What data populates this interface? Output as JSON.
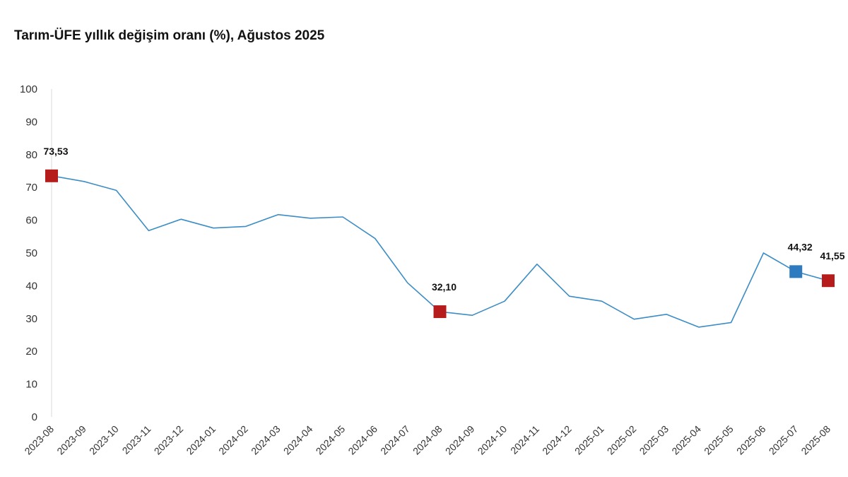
{
  "chart_data": {
    "type": "line",
    "title": "Tarım-ÜFE yıllık değişim oranı (%), Ağustos 2025",
    "xlabel": "",
    "ylabel": "",
    "ylim": [
      0,
      100
    ],
    "yticks": [
      0,
      10,
      20,
      30,
      40,
      50,
      60,
      70,
      80,
      90,
      100
    ],
    "grid": false,
    "legend": "none",
    "categories": [
      "2023-08",
      "2023-09",
      "2023-10",
      "2023-11",
      "2023-12",
      "2024-01",
      "2024-02",
      "2024-03",
      "2024-04",
      "2024-05",
      "2024-06",
      "2024-07",
      "2024-08",
      "2024-09",
      "2024-10",
      "2024-11",
      "2024-12",
      "2025-01",
      "2025-02",
      "2025-03",
      "2025-04",
      "2025-05",
      "2025-06",
      "2025-07",
      "2025-08"
    ],
    "series": [
      {
        "name": "Tarım-ÜFE yıllık değişim oranı (%)",
        "color": "#3c8dc5",
        "values": [
          73.53,
          71.8,
          69.1,
          56.8,
          60.3,
          57.6,
          58.1,
          61.7,
          60.6,
          61.0,
          54.4,
          40.9,
          32.1,
          31.0,
          35.3,
          46.6,
          36.8,
          35.3,
          29.8,
          31.3,
          27.4,
          28.8,
          50.0,
          44.32,
          41.55
        ]
      }
    ],
    "annotations": [
      {
        "category": "2023-08",
        "label": "73,53",
        "marker_color": "#b71c1c"
      },
      {
        "category": "2024-08",
        "label": "32,10",
        "marker_color": "#b71c1c"
      },
      {
        "category": "2025-07",
        "label": "44,32",
        "marker_color": "#2e7bbf"
      },
      {
        "category": "2025-08",
        "label": "41,55",
        "marker_color": "#b71c1c"
      }
    ]
  }
}
